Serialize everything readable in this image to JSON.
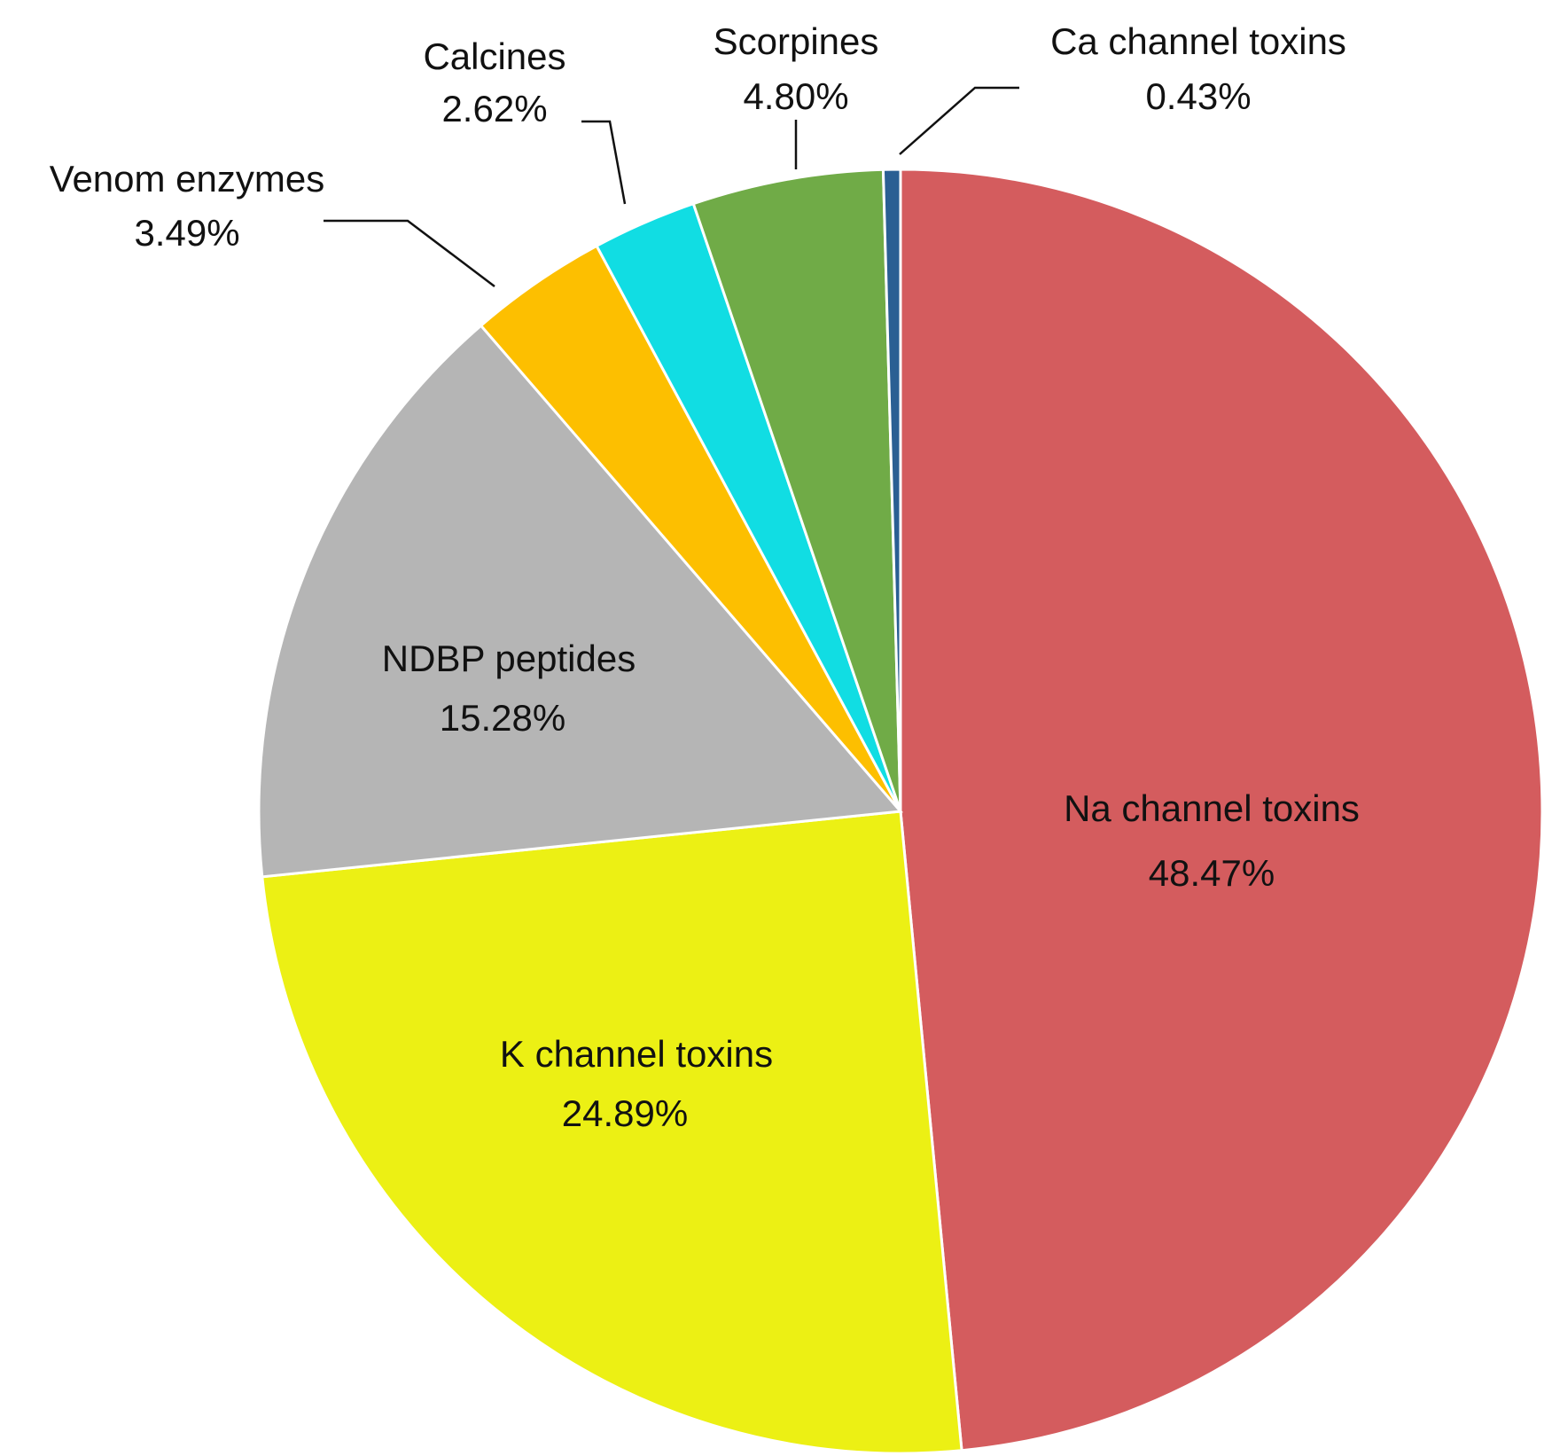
{
  "chart_data": {
    "type": "pie",
    "categories": [
      "Na channel toxins",
      "K channel toxins",
      "NDBP peptides",
      "Venom enzymes",
      "Calcines",
      "Scorpines",
      "Ca channel toxins"
    ],
    "values": [
      48.47,
      24.89,
      15.28,
      3.49,
      2.62,
      4.8,
      0.43
    ],
    "value_labels": [
      "48.47%",
      "24.89%",
      "15.28%",
      "3.49%",
      "2.62%",
      "4.80%",
      "0.43%"
    ],
    "colors": [
      "#d45c5e",
      "#ecf014",
      "#b5b5b5",
      "#fdbf00",
      "#11dde3",
      "#70ab47",
      "#2a5f93"
    ]
  }
}
